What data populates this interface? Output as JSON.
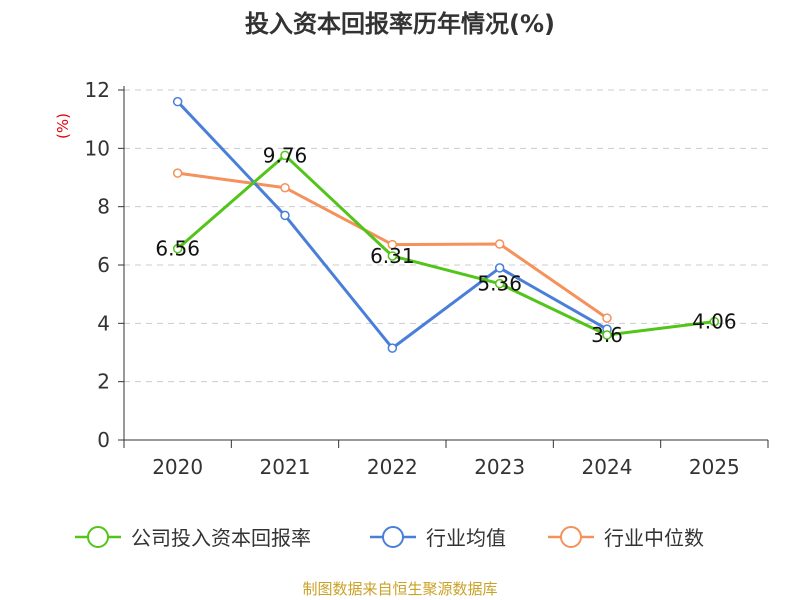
{
  "chart_data": {
    "type": "line",
    "title": "投入资本回报率历年情况(%)",
    "ylabel": "(%)",
    "xlabel": "",
    "categories": [
      "2020",
      "2021",
      "2022",
      "2023",
      "2024",
      "2025"
    ],
    "ylim": [
      0,
      12
    ],
    "yticks": [
      0,
      2,
      4,
      6,
      8,
      10,
      12
    ],
    "grid": true,
    "legend_position": "bottom",
    "series": [
      {
        "name": "公司投入资本回报率",
        "color": "#52c41a",
        "values": [
          6.56,
          9.76,
          6.31,
          5.36,
          3.6,
          4.06
        ],
        "labels": [
          "6.56",
          "9.76",
          "6.31",
          "5.36",
          "3.6",
          "4.06"
        ]
      },
      {
        "name": "行业均值",
        "color": "#4a7fd9",
        "values": [
          11.6,
          7.7,
          3.15,
          5.9,
          3.8,
          null
        ]
      },
      {
        "name": "行业中位数",
        "color": "#f5915a",
        "values": [
          9.15,
          8.65,
          6.7,
          6.72,
          4.18,
          null
        ]
      }
    ],
    "source": "制图数据来自恒生聚源数据库"
  }
}
